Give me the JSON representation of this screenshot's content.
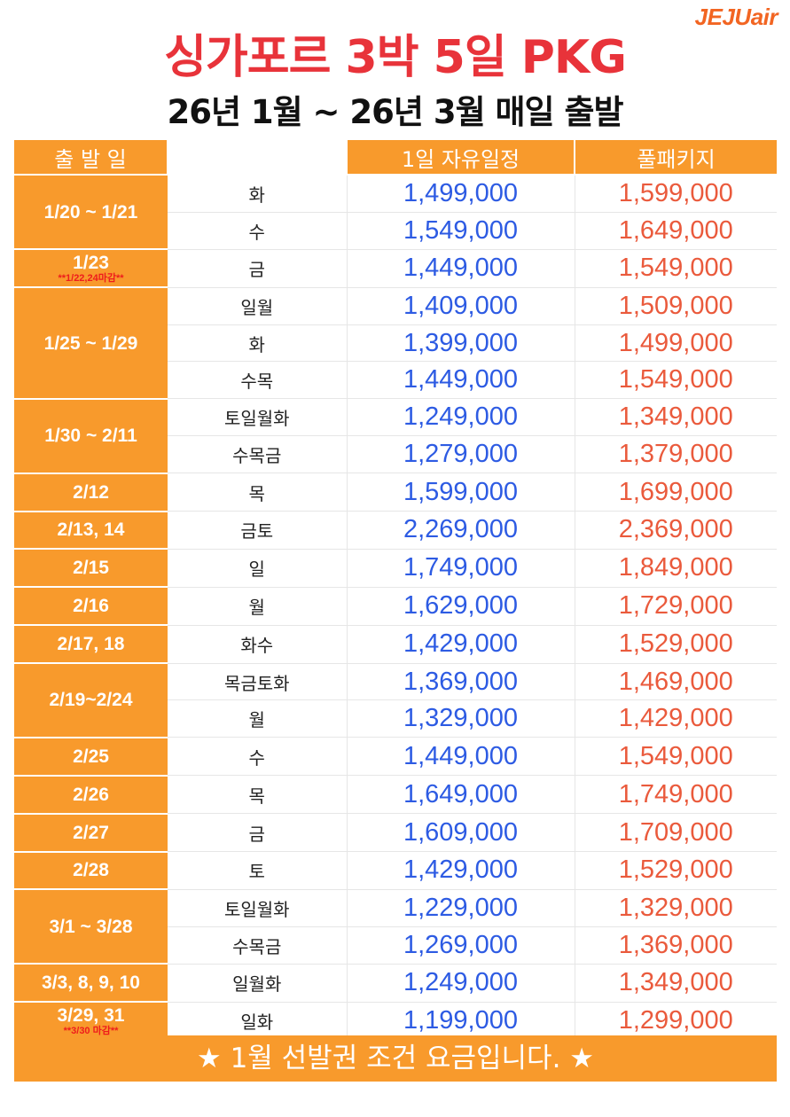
{
  "logo": "JEJUair",
  "title": "싱가포르 3박 5일 PKG",
  "subtitle": "26년 1월 ~ 26년 3월 매일 출발",
  "header": {
    "date": "출 발 일",
    "free": "1일 자유일정",
    "full": "풀패키지"
  },
  "groups": [
    {
      "date": "1/20 ~ 1/21",
      "rows": [
        {
          "day": "화",
          "free": "1,499,000",
          "full": "1,599,000"
        },
        {
          "day": "수",
          "free": "1,549,000",
          "full": "1,649,000"
        }
      ]
    },
    {
      "date": "1/23",
      "note": "**1/22,24마감**",
      "rows": [
        {
          "day": "금",
          "free": "1,449,000",
          "full": "1,549,000"
        }
      ]
    },
    {
      "date": "1/25 ~ 1/29",
      "rows": [
        {
          "day": "일월",
          "free": "1,409,000",
          "full": "1,509,000"
        },
        {
          "day": "화",
          "free": "1,399,000",
          "full": "1,499,000"
        },
        {
          "day": "수목",
          "free": "1,449,000",
          "full": "1,549,000"
        }
      ]
    },
    {
      "date": "1/30 ~ 2/11",
      "rows": [
        {
          "day": "토일월화",
          "free": "1,249,000",
          "full": "1,349,000"
        },
        {
          "day": "수목금",
          "free": "1,279,000",
          "full": "1,379,000"
        }
      ]
    },
    {
      "date": "2/12",
      "rows": [
        {
          "day": "목",
          "free": "1,599,000",
          "full": "1,699,000"
        }
      ]
    },
    {
      "date": "2/13, 14",
      "rows": [
        {
          "day": "금토",
          "free": "2,269,000",
          "full": "2,369,000"
        }
      ]
    },
    {
      "date": "2/15",
      "rows": [
        {
          "day": "일",
          "free": "1,749,000",
          "full": "1,849,000"
        }
      ]
    },
    {
      "date": "2/16",
      "rows": [
        {
          "day": "월",
          "free": "1,629,000",
          "full": "1,729,000"
        }
      ]
    },
    {
      "date": "2/17, 18",
      "rows": [
        {
          "day": "화수",
          "free": "1,429,000",
          "full": "1,529,000"
        }
      ]
    },
    {
      "date": "2/19~2/24",
      "rows": [
        {
          "day": "목금토화",
          "free": "1,369,000",
          "full": "1,469,000"
        },
        {
          "day": "월",
          "free": "1,329,000",
          "full": "1,429,000"
        }
      ]
    },
    {
      "date": "2/25",
      "rows": [
        {
          "day": "수",
          "free": "1,449,000",
          "full": "1,549,000"
        }
      ]
    },
    {
      "date": "2/26",
      "rows": [
        {
          "day": "목",
          "free": "1,649,000",
          "full": "1,749,000"
        }
      ]
    },
    {
      "date": "2/27",
      "rows": [
        {
          "day": "금",
          "free": "1,609,000",
          "full": "1,709,000"
        }
      ]
    },
    {
      "date": "2/28",
      "rows": [
        {
          "day": "토",
          "free": "1,429,000",
          "full": "1,529,000"
        }
      ]
    },
    {
      "date": "3/1 ~ 3/28",
      "rows": [
        {
          "day": "토일월화",
          "free": "1,229,000",
          "full": "1,329,000"
        },
        {
          "day": "수목금",
          "free": "1,269,000",
          "full": "1,369,000"
        }
      ]
    },
    {
      "date": "3/3, 8, 9, 10",
      "rows": [
        {
          "day": "일월화",
          "free": "1,249,000",
          "full": "1,349,000"
        }
      ]
    },
    {
      "date": "3/29, 31",
      "note": "**3/30 마감**",
      "rows": [
        {
          "day": "일화",
          "free": "1,199,000",
          "full": "1,299,000"
        }
      ]
    }
  ],
  "footer": "★ 1월 선발권 조건 요금입니다. ★",
  "colors": {
    "accent": "#f89a2c",
    "title_red": "#e8333a",
    "free_blue": "#2d5be3",
    "full_orange": "#ea5a3c",
    "logo_orange": "#f26522"
  }
}
